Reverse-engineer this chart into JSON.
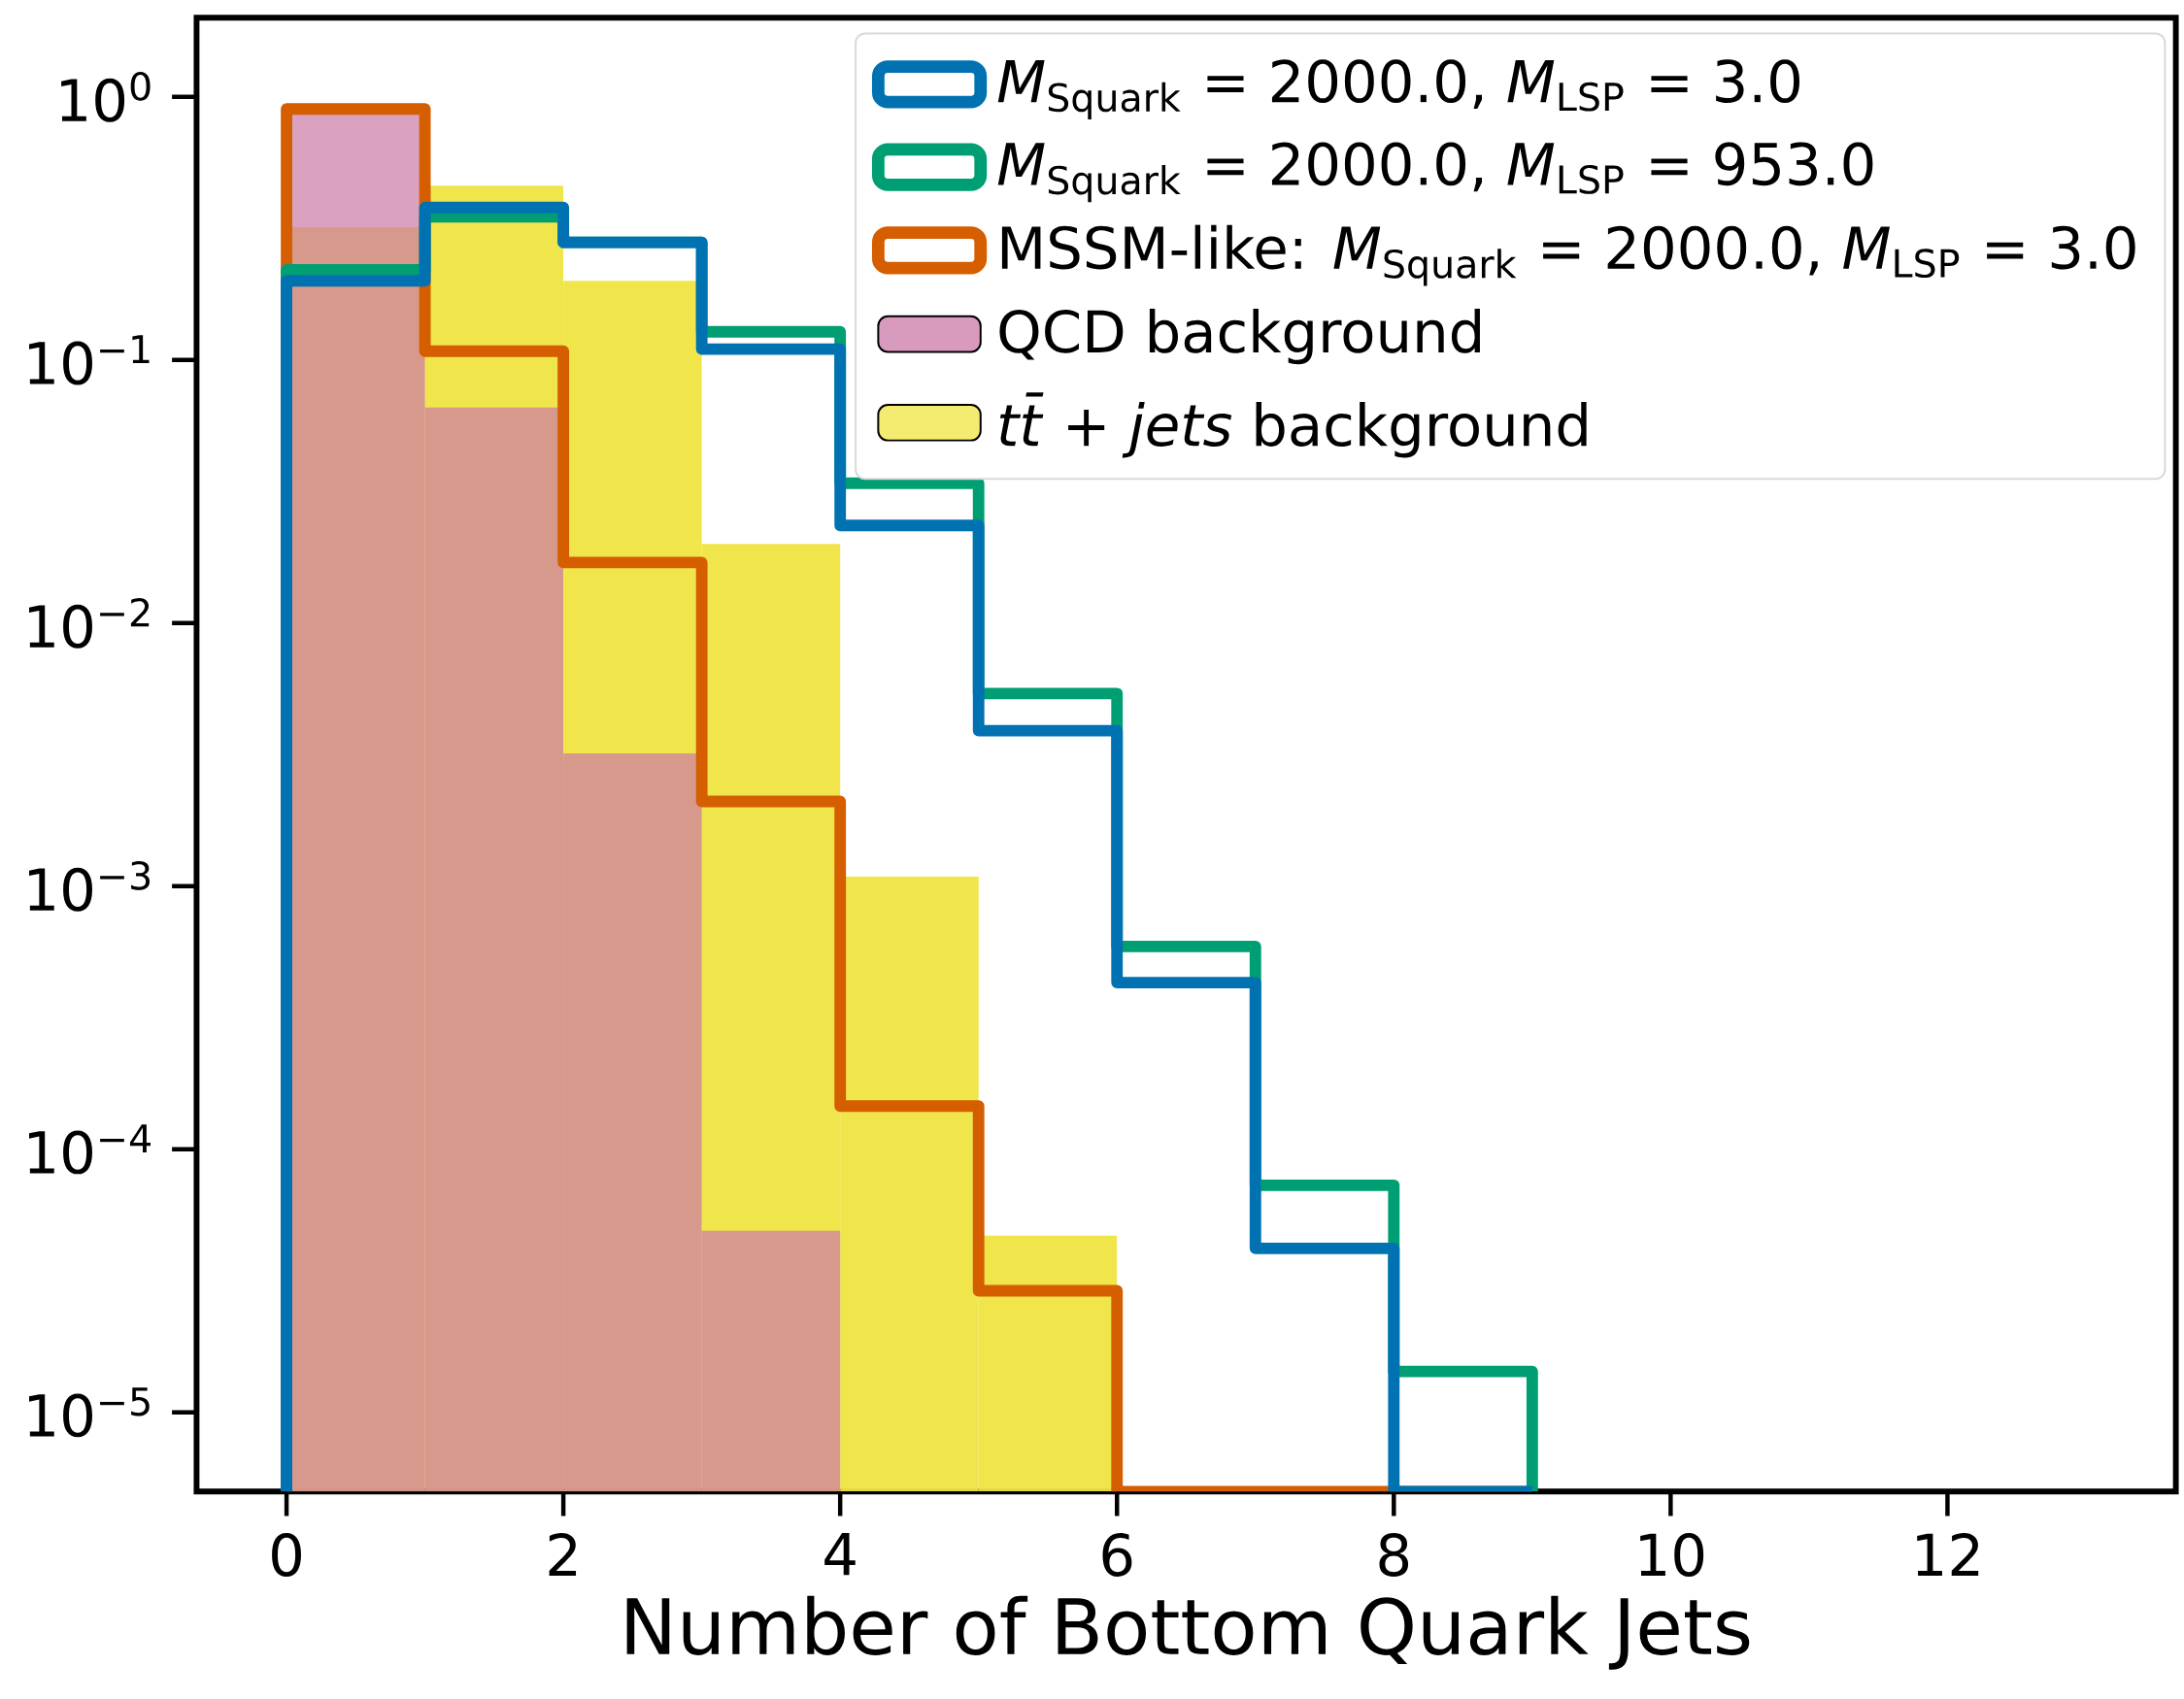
{
  "chart_data": {
    "type": "histogram",
    "xlabel": "Number of Bottom Quark Jets",
    "bins": [
      0,
      1,
      2,
      3,
      4,
      5,
      6,
      7,
      8,
      9
    ],
    "series": [
      {
        "name": "*M*$_{Squark}$ = 2000.0, *M*$_{LSP}$ = 3.0",
        "line_style": "solid",
        "color": "#0072b2",
        "values": [
          0.2,
          0.38,
          0.28,
          0.11,
          0.0235,
          0.0039,
          0.00043,
          4.2e-05,
          null
        ]
      },
      {
        "name": "*M*$_{Squark}$ = 2000.0, *M*$_{LSP}$ = 953.0",
        "line_style": "solid",
        "color": "#009e73",
        "values": [
          0.22,
          0.35,
          0.28,
          0.128,
          0.034,
          0.0054,
          0.00059,
          7.3e-05,
          1.43e-05
        ]
      },
      {
        "name": "MSSM-like: *M*$_{Squark}$ = 2000.0, *M*$_{LSP}$ = 3.0",
        "line_style": "solid",
        "color": "#d55e00",
        "values": [
          0.9,
          0.108,
          0.017,
          0.0021,
          0.000146,
          2.9e-05,
          null,
          null,
          null
        ]
      },
      {
        "name": "QCD background",
        "color": "#cc79a7",
        "values": [
          0.88,
          0.066,
          0.0032,
          4.9e-05,
          null,
          null,
          null,
          null,
          null
        ]
      },
      {
        "name": "*tt̄* + *jets* background",
        "color": "#f0e442",
        "values": [
          0.32,
          0.46,
          0.2,
          0.02,
          0.00109,
          4.7e-05,
          null,
          null,
          null
        ]
      }
    ],
    "log": true,
    "xlim": [
      -0.65,
      13.65
    ],
    "ylim": [
      5e-06,
      2
    ],
    "xticks": [
      0,
      2,
      4,
      6,
      8,
      10,
      12
    ],
    "yticks": [
      {
        "value": 1,
        "label": "10$^{0}$"
      },
      {
        "value": 0.1,
        "label": "10$^{−1}$"
      },
      {
        "value": 0.01,
        "label": "10$^{−2}$"
      },
      {
        "value": 0.001,
        "label": "10$^{−3}$"
      },
      {
        "value": 0.0001,
        "label": "10$^{−4}$"
      },
      {
        "value": 1e-05,
        "label": "10$^{−5}$"
      }
    ],
    "legend": "top right"
  }
}
